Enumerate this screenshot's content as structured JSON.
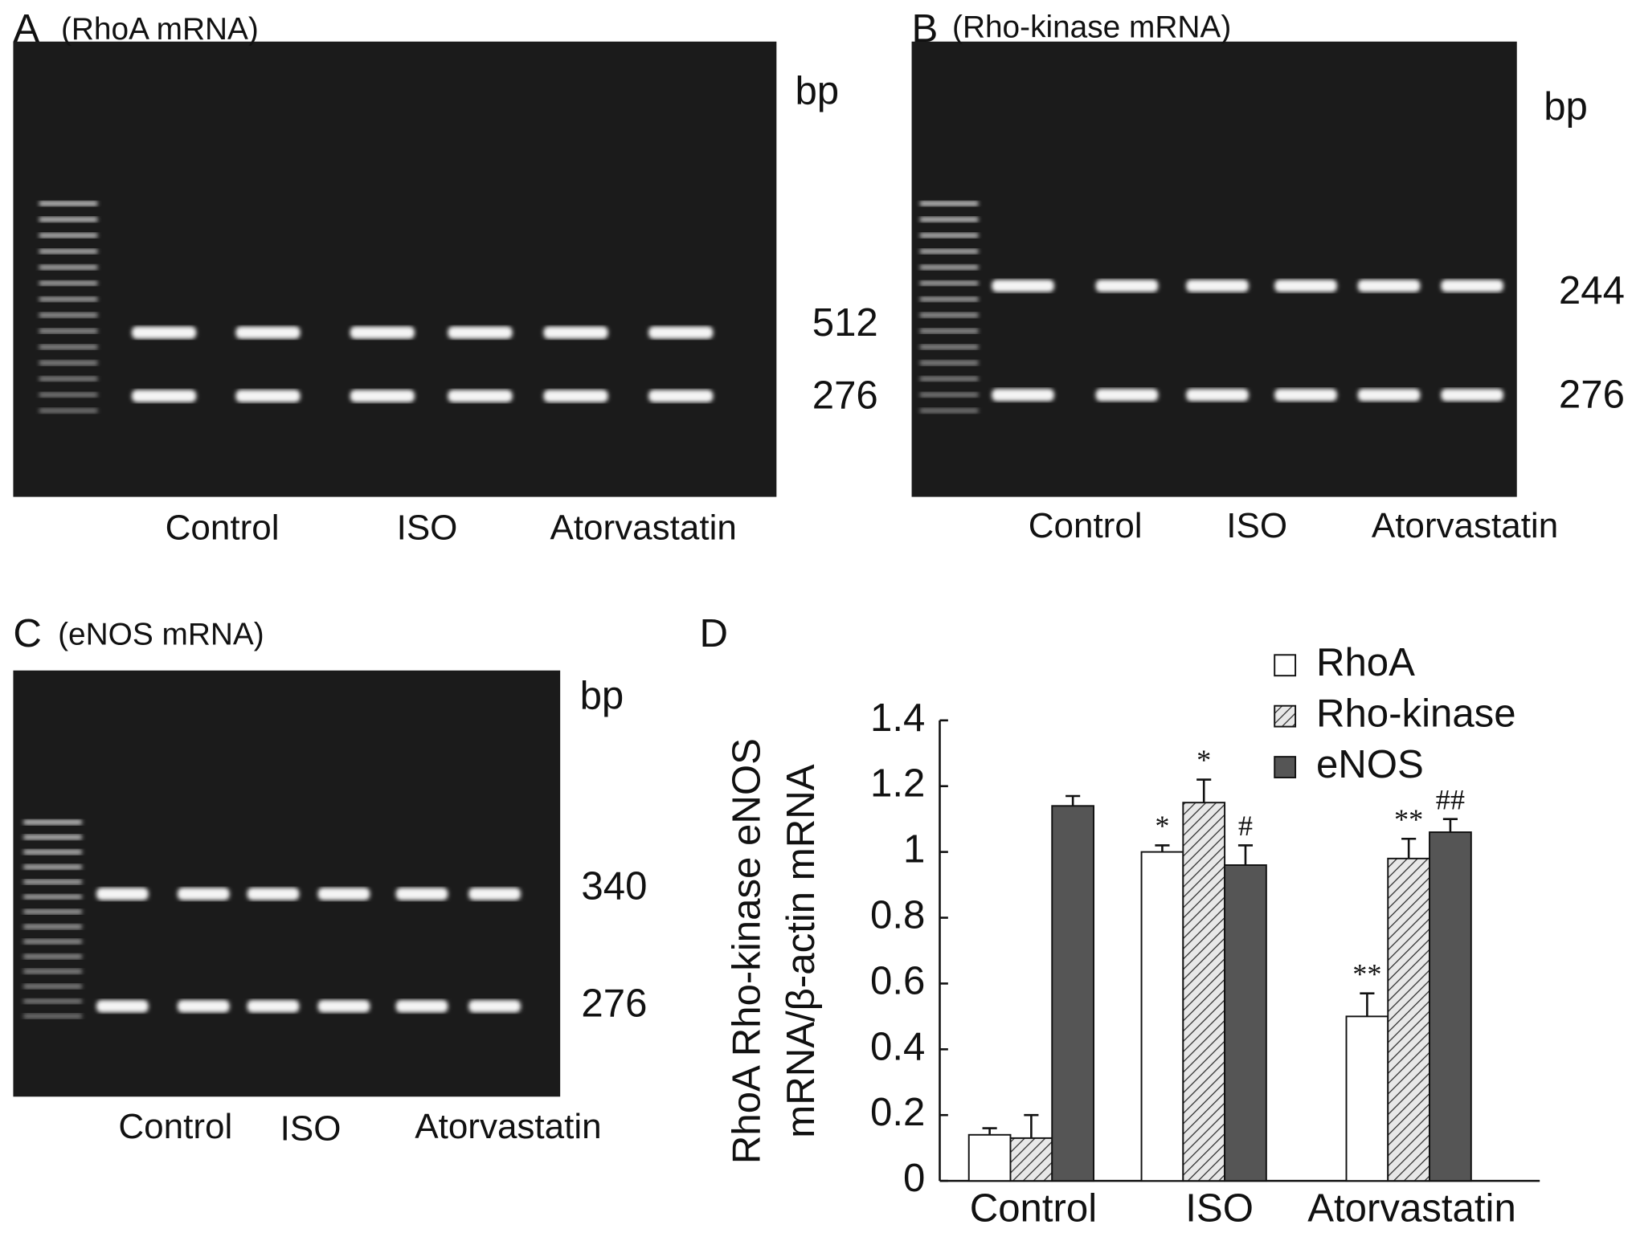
{
  "panels": [
    {
      "letter": "A",
      "title": "(RhoA mRNA)",
      "unit": "bp",
      "markers": [
        "512",
        "276"
      ],
      "lanes": [
        "Control",
        "ISO",
        "Atorvastatin"
      ]
    },
    {
      "letter": "B",
      "title": "(Rho-kinase mRNA)",
      "unit": "bp",
      "markers": [
        "244",
        "276"
      ],
      "lanes": [
        "Control",
        "ISO",
        "Atorvastatin"
      ]
    },
    {
      "letter": "C",
      "title": "(eNOS mRNA)",
      "unit": "bp",
      "markers": [
        "340",
        "276"
      ],
      "lanes": [
        "Control",
        "ISO",
        "Atorvastatin"
      ]
    }
  ],
  "chart_data": {
    "type": "bar",
    "panel": "D",
    "ylabel": [
      "RhoA Rho-kinase eNOS",
      "mRNA/β-actin mRNA"
    ],
    "categories": [
      "Control",
      "ISO",
      "Atorvastatin"
    ],
    "ylim": [
      0,
      1.4
    ],
    "yticks": [
      0,
      0.2,
      0.4,
      0.6,
      0.8,
      1,
      1.2,
      1.4
    ],
    "series": [
      {
        "name": "RhoA",
        "color": "#ffffff",
        "values": [
          0.14,
          1.0,
          0.5
        ],
        "errors": [
          0.02,
          0.02,
          0.07
        ],
        "significance": [
          null,
          "*",
          "**"
        ]
      },
      {
        "name": "Rho-kinase",
        "color": "hatched",
        "values": [
          0.13,
          1.15,
          0.98
        ],
        "errors": [
          0.07,
          0.07,
          0.06
        ],
        "significance": [
          null,
          "*",
          "**"
        ]
      },
      {
        "name": "eNOS",
        "color": "#555555",
        "values": [
          1.14,
          0.96,
          1.06
        ],
        "errors": [
          0.03,
          0.06,
          0.04
        ],
        "significance": [
          null,
          "#",
          "##"
        ]
      }
    ]
  }
}
